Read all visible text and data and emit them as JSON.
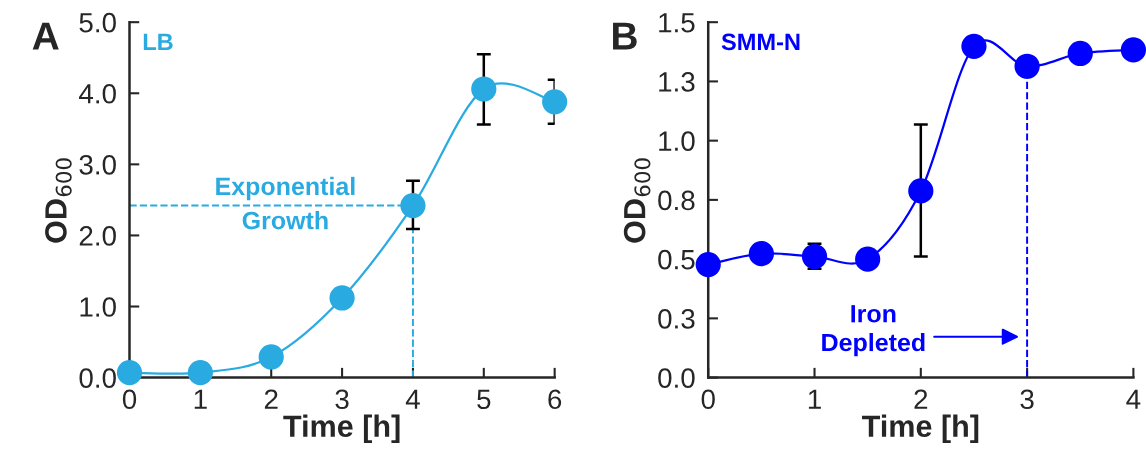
{
  "chart_data": [
    {
      "type": "line",
      "title": "A",
      "xlabel": "Time [h]",
      "ylabel": "OD$_{600}$",
      "x": [
        0,
        1,
        2,
        3,
        4,
        5,
        6
      ],
      "series": [
        {
          "name": "LB",
          "color": "#29abe2",
          "values": [
            0.07,
            0.07,
            0.29,
            1.12,
            2.42,
            4.06,
            3.88
          ],
          "errors": [
            null,
            null,
            null,
            null,
            [
              2.09,
              2.77
            ],
            [
              3.56,
              4.55
            ],
            [
              3.57,
              4.19
            ]
          ]
        }
      ],
      "xlim": [
        0,
        6
      ],
      "xticks": [
        0,
        1,
        2,
        3,
        4,
        5,
        6
      ],
      "ylim": [
        0,
        5
      ],
      "yticks": [
        {
          "value": 0,
          "label": "0.0"
        },
        {
          "value": 1,
          "label": "1.0"
        },
        {
          "value": 2,
          "label": "2.0"
        },
        {
          "value": 3,
          "label": "3.0"
        },
        {
          "value": 4,
          "label": "4.0"
        },
        {
          "value": 5,
          "label": "5.0"
        }
      ],
      "marker": "circle",
      "line_style": "solid",
      "grid": false,
      "ref_lines": [
        {
          "axis": "y",
          "value": 2.42,
          "color": "#29abe2",
          "line_style": "dashed"
        },
        {
          "axis": "x",
          "value": 4,
          "color": "#29abe2",
          "line_style": "dashed"
        }
      ],
      "annotations": [
        {
          "text": "Exponential\nGrowth",
          "x": 2.2,
          "y": 2.42
        }
      ]
    },
    {
      "type": "line",
      "title": "B",
      "xlabel": "Time [h]",
      "ylabel": "OD$_{600}$",
      "x": [
        0,
        0.5,
        1,
        1.5,
        2,
        2.5,
        3,
        3.5,
        4
      ],
      "series": [
        {
          "name": "SMM-N",
          "color": "#0000ff",
          "values": [
            0.477,
            0.523,
            0.511,
            0.5,
            0.788,
            1.398,
            1.314,
            1.368,
            1.383
          ],
          "errors": [
            null,
            null,
            [
              0.459,
              0.565
            ],
            null,
            [
              0.511,
              1.068
            ],
            null,
            null,
            null,
            null
          ]
        }
      ],
      "xlim": [
        0,
        4
      ],
      "xticks": [
        0,
        1,
        2,
        3,
        4
      ],
      "ylim": [
        0,
        1.5
      ],
      "yticks": [
        {
          "value": 0,
          "label": "0.0"
        },
        {
          "value": 0.25,
          "label": "0.3"
        },
        {
          "value": 0.5,
          "label": "0.5"
        },
        {
          "value": 0.75,
          "label": "0.8"
        },
        {
          "value": 1.0,
          "label": "1.0"
        },
        {
          "value": 1.25,
          "label": "1.3"
        },
        {
          "value": 1.5,
          "label": "1.5"
        }
      ],
      "marker": "circle",
      "line_style": "solid",
      "grid": false,
      "ref_lines": [
        {
          "axis": "x",
          "value": 3,
          "color": "#0000ff",
          "line_style": "dashed"
        }
      ],
      "annotations": [
        "Iron\nDepleted"
      ]
    }
  ]
}
